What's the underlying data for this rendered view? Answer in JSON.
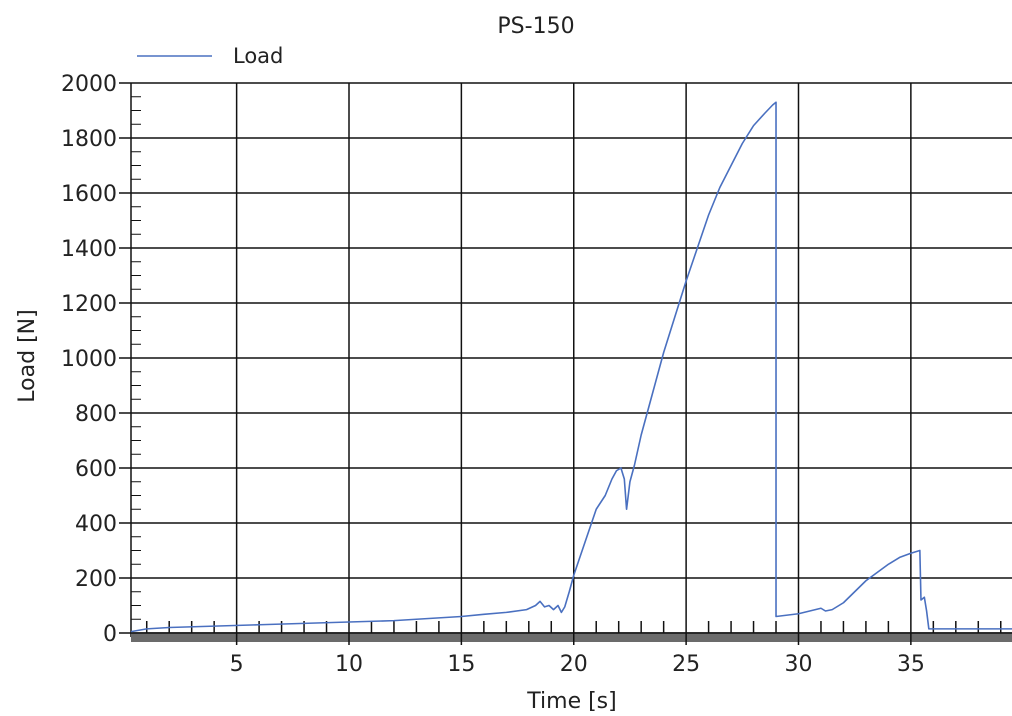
{
  "chart_data": {
    "type": "line",
    "title": "PS-150",
    "xlabel": "Time [s]",
    "ylabel": "Load [N]",
    "xlim": [
      0.3,
      39.5
    ],
    "ylim": [
      0,
      2000
    ],
    "x_ticks": [
      5,
      10,
      15,
      20,
      25,
      30,
      35
    ],
    "y_ticks": [
      0,
      200,
      400,
      600,
      800,
      1000,
      1200,
      1400,
      1600,
      1800,
      2000
    ],
    "grid": true,
    "legend_position": "top-left",
    "series": [
      {
        "name": "Load",
        "color": "#4a70c0",
        "points": [
          [
            0.3,
            5
          ],
          [
            1,
            15
          ],
          [
            2,
            20
          ],
          [
            4,
            25
          ],
          [
            6,
            30
          ],
          [
            8,
            35
          ],
          [
            10,
            40
          ],
          [
            12,
            45
          ],
          [
            14,
            55
          ],
          [
            15,
            60
          ],
          [
            16,
            68
          ],
          [
            17,
            75
          ],
          [
            17.9,
            85
          ],
          [
            18.3,
            100
          ],
          [
            18.5,
            115
          ],
          [
            18.7,
            95
          ],
          [
            18.9,
            100
          ],
          [
            19.1,
            85
          ],
          [
            19.3,
            100
          ],
          [
            19.45,
            75
          ],
          [
            19.6,
            95
          ],
          [
            19.8,
            150
          ],
          [
            20,
            210
          ],
          [
            20.5,
            330
          ],
          [
            21,
            450
          ],
          [
            21.4,
            500
          ],
          [
            21.7,
            560
          ],
          [
            21.9,
            590
          ],
          [
            22.1,
            600
          ],
          [
            22.25,
            560
          ],
          [
            22.35,
            450
          ],
          [
            22.5,
            550
          ],
          [
            22.7,
            610
          ],
          [
            23,
            720
          ],
          [
            23.5,
            870
          ],
          [
            24,
            1020
          ],
          [
            24.5,
            1150
          ],
          [
            25,
            1280
          ],
          [
            25.5,
            1400
          ],
          [
            26,
            1520
          ],
          [
            26.5,
            1620
          ],
          [
            27,
            1700
          ],
          [
            27.5,
            1780
          ],
          [
            28,
            1845
          ],
          [
            28.5,
            1890
          ],
          [
            28.85,
            1920
          ],
          [
            29.0,
            1930
          ],
          [
            29.0,
            60
          ],
          [
            29.5,
            65
          ],
          [
            30,
            70
          ],
          [
            30.5,
            80
          ],
          [
            31,
            90
          ],
          [
            31.2,
            80
          ],
          [
            31.5,
            85
          ],
          [
            32,
            110
          ],
          [
            32.5,
            150
          ],
          [
            33,
            190
          ],
          [
            33.5,
            220
          ],
          [
            34,
            250
          ],
          [
            34.5,
            275
          ],
          [
            35,
            290
          ],
          [
            35.4,
            300
          ],
          [
            35.45,
            120
          ],
          [
            35.6,
            130
          ],
          [
            35.7,
            80
          ],
          [
            35.8,
            15
          ],
          [
            36.5,
            15
          ],
          [
            37.5,
            15
          ],
          [
            39.5,
            15
          ]
        ]
      }
    ]
  }
}
